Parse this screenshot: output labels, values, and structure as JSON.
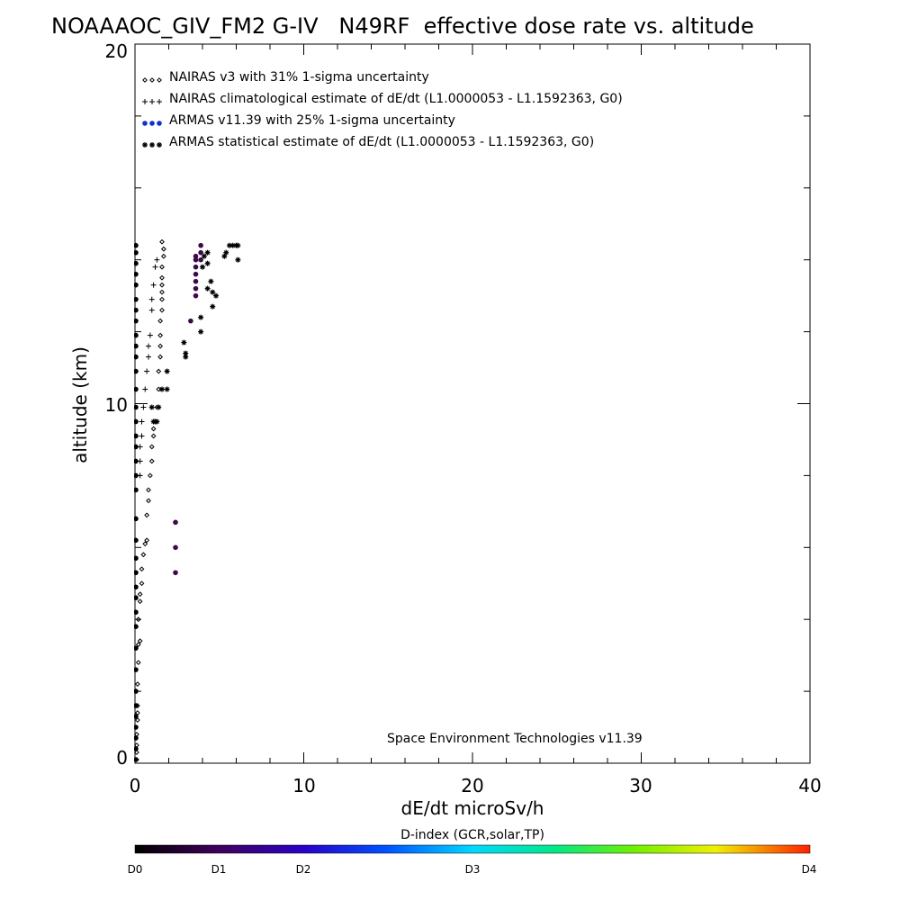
{
  "chart_data": {
    "type": "scatter",
    "title": "NOAAAOC_GIV_FM2 G-IV   N49RF  effective dose rate vs. altitude",
    "xlabel": "dE/dt microSv/h",
    "ylabel": "altitude (km)",
    "xlim": [
      0,
      40
    ],
    "ylim": [
      0,
      20
    ],
    "x_ticks": [
      "0",
      "10",
      "20",
      "30",
      "40"
    ],
    "y_ticks": [
      "0",
      "10",
      "20"
    ],
    "legend_position": "top-left",
    "legend": [
      "NAIRAS v3 with 31% 1-sigma uncertainty",
      "NAIRAS climatological estimate of dE/dt (L1.0000053 - L1.1592363, G0)",
      "ARMAS v11.39 with 25% 1-sigma uncertainty",
      "ARMAS statistical estimate of dE/dt (L1.0000053 - L1.1592363, G0)"
    ],
    "credit": "Space Environment Technologies v11.39",
    "colorbar": {
      "title": "D-index (GCR,solar,TP)",
      "labels": [
        "D0",
        "D1",
        "D2",
        "D3",
        "D4"
      ]
    },
    "series": [
      {
        "marker": "diamond",
        "values": [
          [
            0.1,
            0.1
          ],
          [
            0.1,
            0.3
          ],
          [
            0.1,
            0.5
          ],
          [
            0.1,
            0.8
          ],
          [
            0.15,
            1.2
          ],
          [
            0.15,
            1.4
          ],
          [
            0.15,
            1.6
          ],
          [
            0.15,
            2.2
          ],
          [
            0.2,
            2.8
          ],
          [
            0.2,
            3.3
          ],
          [
            0.3,
            3.4
          ],
          [
            0.2,
            4.0
          ],
          [
            0.3,
            4.5
          ],
          [
            0.3,
            4.7
          ],
          [
            0.4,
            5.0
          ],
          [
            0.4,
            5.4
          ],
          [
            0.5,
            5.8
          ],
          [
            0.6,
            6.1
          ],
          [
            0.7,
            6.2
          ],
          [
            0.7,
            6.9
          ],
          [
            0.8,
            7.3
          ],
          [
            0.8,
            7.6
          ],
          [
            0.9,
            8.0
          ],
          [
            1.0,
            8.4
          ],
          [
            1.0,
            8.8
          ],
          [
            1.1,
            9.1
          ],
          [
            1.1,
            9.3
          ],
          [
            1.2,
            9.5
          ],
          [
            1.3,
            9.9
          ],
          [
            1.4,
            10.4
          ],
          [
            1.4,
            10.9
          ],
          [
            1.5,
            11.3
          ],
          [
            1.5,
            11.6
          ],
          [
            1.5,
            11.9
          ],
          [
            1.5,
            12.3
          ],
          [
            1.6,
            12.6
          ],
          [
            1.6,
            12.9
          ],
          [
            1.6,
            13.1
          ],
          [
            1.6,
            13.3
          ],
          [
            1.6,
            13.5
          ],
          [
            1.6,
            13.8
          ],
          [
            1.7,
            14.1
          ],
          [
            1.7,
            14.3
          ],
          [
            1.6,
            14.5
          ]
        ]
      },
      {
        "marker": "plus",
        "values": [
          [
            0.3,
            8.0
          ],
          [
            0.3,
            8.4
          ],
          [
            0.3,
            8.8
          ],
          [
            0.4,
            9.1
          ],
          [
            0.4,
            9.5
          ],
          [
            0.5,
            9.9
          ],
          [
            0.6,
            10.4
          ],
          [
            0.7,
            10.9
          ],
          [
            0.8,
            11.3
          ],
          [
            0.8,
            11.6
          ],
          [
            0.9,
            11.9
          ],
          [
            1.0,
            12.6
          ],
          [
            1.0,
            12.9
          ],
          [
            1.1,
            13.3
          ],
          [
            1.2,
            13.8
          ],
          [
            1.3,
            14.0
          ]
        ]
      },
      {
        "marker": "dot",
        "values": [
          [
            0.05,
            0.1
          ],
          [
            0.05,
            0.4
          ],
          [
            0.05,
            0.7
          ],
          [
            0.05,
            1.0
          ],
          [
            0.05,
            1.3
          ],
          [
            0.05,
            1.6
          ],
          [
            0.05,
            2.0
          ],
          [
            0.05,
            2.6
          ],
          [
            0.05,
            3.2
          ],
          [
            0.05,
            3.8
          ],
          [
            0.05,
            4.2
          ],
          [
            0.05,
            4.6
          ],
          [
            0.05,
            4.9
          ],
          [
            0.05,
            5.3
          ],
          [
            0.05,
            5.7
          ],
          [
            0.05,
            6.2
          ],
          [
            0.05,
            6.8
          ],
          [
            0.05,
            7.6
          ],
          [
            0.05,
            8.0
          ],
          [
            0.05,
            8.4
          ],
          [
            0.05,
            8.8
          ],
          [
            0.05,
            9.1
          ],
          [
            0.05,
            9.5
          ],
          [
            0.05,
            9.9
          ],
          [
            0.05,
            10.4
          ],
          [
            0.05,
            10.9
          ],
          [
            0.05,
            11.3
          ],
          [
            0.05,
            11.6
          ],
          [
            0.05,
            11.9
          ],
          [
            0.05,
            12.3
          ],
          [
            0.05,
            12.6
          ],
          [
            0.05,
            12.9
          ],
          [
            0.05,
            13.3
          ],
          [
            0.05,
            13.6
          ],
          [
            0.05,
            13.9
          ],
          [
            0.05,
            14.2
          ],
          [
            0.05,
            14.4
          ],
          [
            2.4,
            5.3
          ],
          [
            2.4,
            6.0
          ],
          [
            2.4,
            6.7
          ],
          [
            3.3,
            12.3
          ],
          [
            3.6,
            13.0
          ],
          [
            3.6,
            13.2
          ],
          [
            3.6,
            13.4
          ],
          [
            3.6,
            13.6
          ],
          [
            3.6,
            13.8
          ],
          [
            3.6,
            14.0
          ],
          [
            3.6,
            14.1
          ],
          [
            3.9,
            14.0
          ],
          [
            3.9,
            14.2
          ],
          [
            3.9,
            14.4
          ]
        ]
      },
      {
        "marker": "asterisk",
        "values": [
          [
            1.0,
            9.9
          ],
          [
            1.1,
            9.5
          ],
          [
            1.2,
            9.5
          ],
          [
            1.3,
            9.5
          ],
          [
            1.4,
            9.9
          ],
          [
            1.6,
            10.4
          ],
          [
            1.9,
            10.4
          ],
          [
            1.9,
            10.9
          ],
          [
            3.0,
            11.3
          ],
          [
            3.0,
            11.4
          ],
          [
            2.9,
            11.7
          ],
          [
            3.9,
            12.0
          ],
          [
            3.9,
            12.4
          ],
          [
            4.6,
            12.7
          ],
          [
            4.3,
            13.2
          ],
          [
            4.6,
            13.1
          ],
          [
            4.8,
            13.0
          ],
          [
            4.5,
            13.4
          ],
          [
            4.0,
            13.8
          ],
          [
            4.3,
            13.9
          ],
          [
            4.1,
            14.1
          ],
          [
            4.3,
            14.2
          ],
          [
            5.3,
            14.1
          ],
          [
            5.4,
            14.2
          ],
          [
            5.6,
            14.4
          ],
          [
            5.8,
            14.4
          ],
          [
            6.0,
            14.4
          ],
          [
            6.1,
            14.4
          ],
          [
            6.1,
            14.0
          ]
        ]
      }
    ]
  }
}
